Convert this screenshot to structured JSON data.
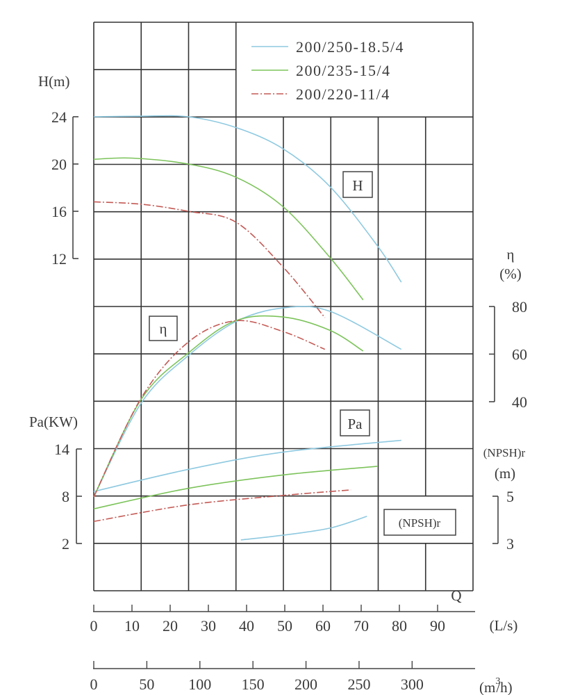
{
  "chart_data": {
    "type": "line",
    "legend": {
      "placement": "top-right",
      "entries": [
        "200/250-18.5/4",
        "200/235-15/4",
        "200/220-11/4"
      ]
    },
    "colors": {
      "200/250-18.5/4": "#8ec9e0",
      "200/235-15/4": "#7cc35a",
      "200/220-11/4": "#c45a55",
      "grid": "#333333"
    },
    "grid": true,
    "x_axes": {
      "q_label": "Q",
      "ls": {
        "unit": "(L/s)",
        "ticks": [
          "0",
          "10",
          "20",
          "30",
          "40",
          "50",
          "60",
          "70",
          "80",
          "90"
        ],
        "range": [
          0,
          100
        ]
      },
      "m3h": {
        "unit_base": "(m",
        "unit_sup": "3",
        "unit_tail": "/h)",
        "ticks": [
          "0",
          "50",
          "100",
          "150",
          "200",
          "250",
          "300"
        ]
      }
    },
    "y_axes": {
      "H": {
        "label": "H(m)",
        "ticks": [
          "24",
          "20",
          "16",
          "12"
        ],
        "range": [
          12,
          24
        ]
      },
      "eta": {
        "label": "η",
        "unit": "(%)",
        "ticks": [
          "80",
          "60",
          "40"
        ],
        "range": [
          40,
          80
        ]
      },
      "Pa": {
        "label": "Pa(KW)",
        "ticks": [
          "14",
          "8",
          "2"
        ],
        "range": [
          2,
          14
        ]
      },
      "NPSH": {
        "label": "(NPSH)r",
        "unit": "(m)",
        "ticks": [
          "5",
          "3"
        ],
        "range": [
          3,
          5
        ]
      }
    },
    "curve_labels": {
      "H": "H",
      "eta": "η",
      "Pa": "Pa",
      "NPSH": "(NPSH)r"
    },
    "series": [
      {
        "name": "200/250-18.5/4",
        "style": "solid",
        "H": {
          "x": [
            0,
            12.4,
            24.7,
            37.1,
            49.5,
            61.8,
            74.2,
            80.5
          ],
          "y": [
            24,
            24.05,
            24,
            23.1,
            21.3,
            18.1,
            13.1,
            10.0
          ]
        },
        "eta": {
          "x": [
            0,
            12.4,
            24.7,
            37.1,
            49.5,
            61.8,
            80.5
          ],
          "y": [
            0,
            39.4,
            59.3,
            73.6,
            79.4,
            78,
            62
          ]
        },
        "Pa": {
          "x": [
            0,
            24.7,
            49.5,
            80.5
          ],
          "y": [
            8.6,
            11.4,
            13.6,
            15.1
          ]
        },
        "NPSH": {
          "x": [
            38.5,
            49.5,
            61.8,
            71.5
          ],
          "y": [
            3.15,
            3.35,
            3.65,
            4.15
          ]
        }
      },
      {
        "name": "200/235-15/4",
        "style": "solid",
        "H": {
          "x": [
            0,
            10,
            24.7,
            37.1,
            49.5,
            61.8,
            70.5
          ],
          "y": [
            20.4,
            20.5,
            20.0,
            18.9,
            16.4,
            12.1,
            8.5
          ]
        },
        "eta": {
          "x": [
            0,
            12.4,
            24.7,
            37.1,
            49.5,
            61.8,
            70.5
          ],
          "y": [
            0,
            41,
            60.4,
            74,
            75.6,
            70,
            61.3
          ]
        },
        "Pa": {
          "x": [
            0,
            24.7,
            49.5,
            74.2
          ],
          "y": [
            6.4,
            9.0,
            10.7,
            11.8
          ]
        }
      },
      {
        "name": "200/220-11/4",
        "style": "dash-dot",
        "H": {
          "x": [
            0,
            12.4,
            24.7,
            37.1,
            49.5,
            60.5
          ],
          "y": [
            16.8,
            16.6,
            16.0,
            15.1,
            11.3,
            7.0
          ]
        },
        "eta": {
          "x": [
            0,
            12.4,
            24.7,
            37.1,
            49.5,
            60.5
          ],
          "y": [
            0,
            41.5,
            65,
            74,
            69.5,
            62
          ]
        },
        "Pa": {
          "x": [
            0,
            24.7,
            49.5,
            67.3
          ],
          "y": [
            4.8,
            6.9,
            8.1,
            8.8
          ]
        }
      }
    ]
  }
}
